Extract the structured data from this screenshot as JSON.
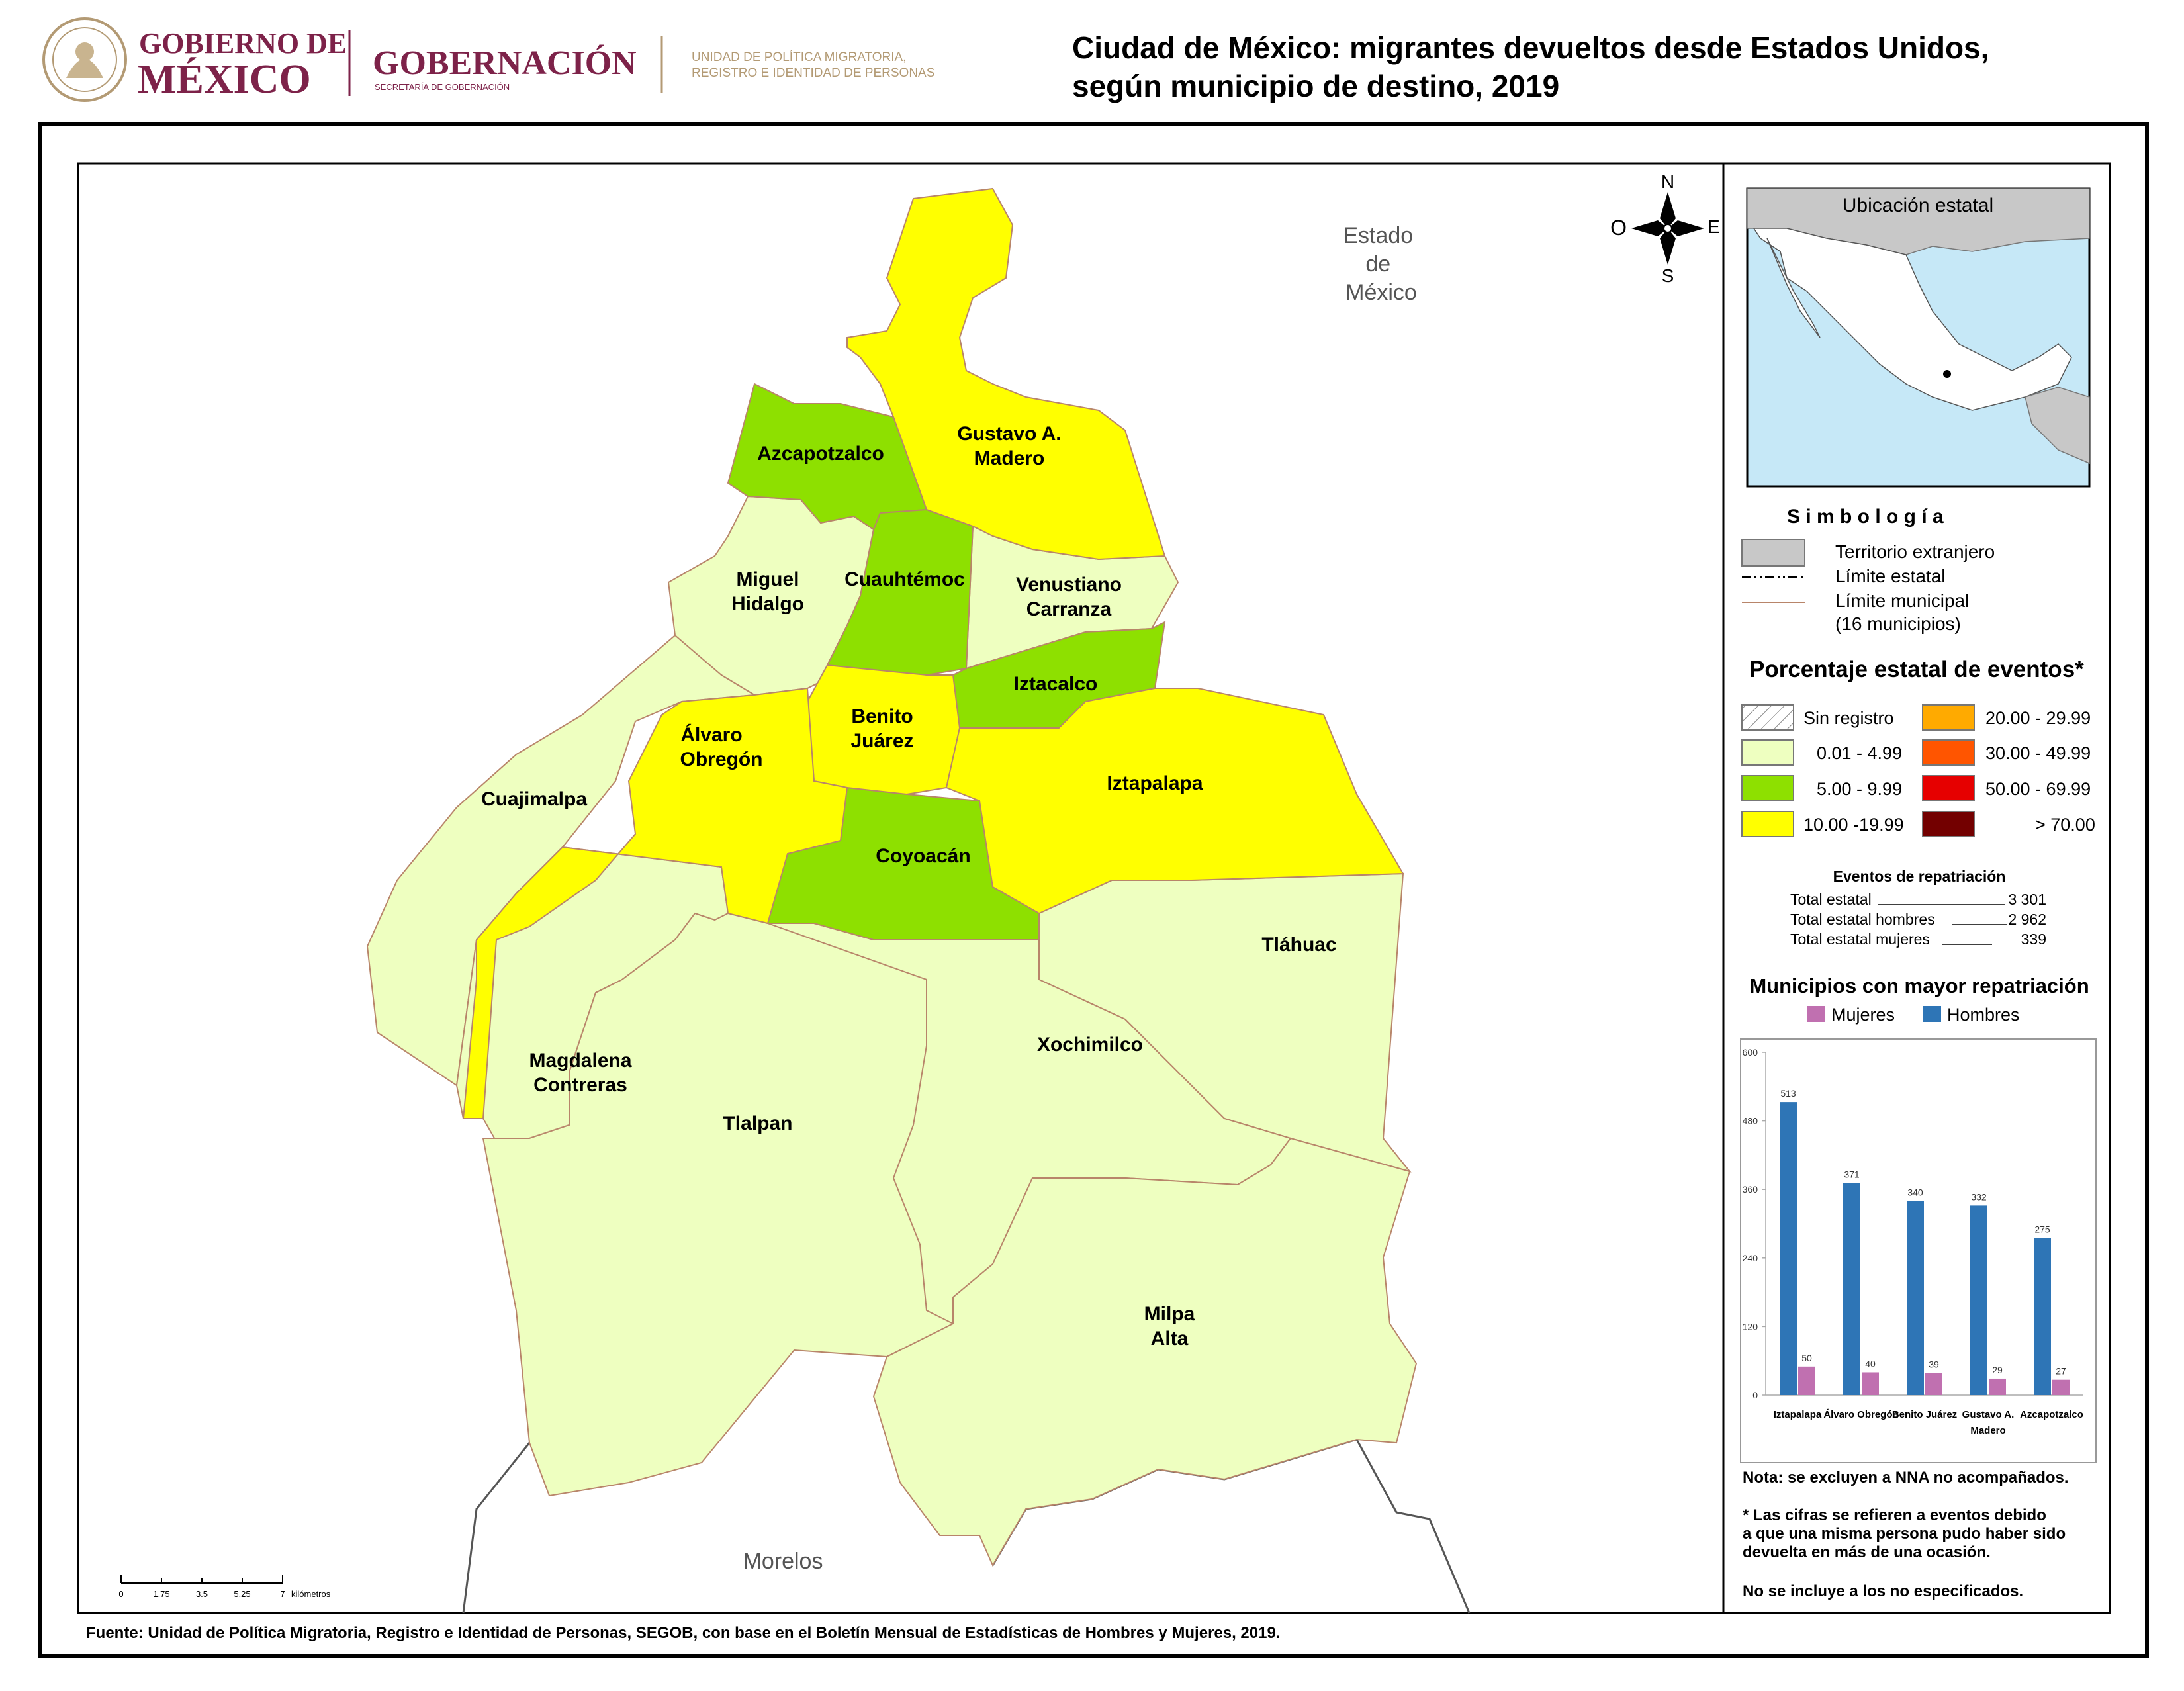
{
  "header": {
    "logo1_line1": "GOBIERNO DE",
    "logo1_line2": "MÉXICO",
    "logo2_title": "GOBERNACIÓN",
    "logo2_sub": "SECRETARÍA DE GOBERNACIÓN",
    "logo3_line1": "UNIDAD DE POLÍTICA MIGRATORIA,",
    "logo3_line2": "REGISTRO E IDENTIDAD DE PERSONAS",
    "title_line1": "Ciudad de México: migrantes devueltos desde Estados Unidos,",
    "title_line2": "según municipio de destino, 2019"
  },
  "map": {
    "neighbor_north": [
      "Estado",
      "de",
      "México"
    ],
    "neighbor_south": "Morelos",
    "compass": {
      "n": "N",
      "s": "S",
      "e": "E",
      "w": "O"
    },
    "scale": {
      "ticks": [
        "0",
        "1.75",
        "3.5",
        "5.25",
        "7"
      ],
      "unit": "kilómetros"
    },
    "municipalities": [
      {
        "id": "gam",
        "label": [
          "Gustavo A.",
          "Madero"
        ],
        "class": "10.00 -19.99"
      },
      {
        "id": "azc",
        "label": [
          "Azcapotzalco"
        ],
        "class": "5.00 - 9.99"
      },
      {
        "id": "mh",
        "label": [
          "Miguel",
          "Hidalgo"
        ],
        "class": "0.01 - 4.99"
      },
      {
        "id": "cuh",
        "label": [
          "Cuauhtémoc"
        ],
        "class": "5.00 - 9.99"
      },
      {
        "id": "vc",
        "label": [
          "Venustiano",
          "Carranza"
        ],
        "class": "0.01 - 4.99"
      },
      {
        "id": "izc",
        "label": [
          "Iztacalco"
        ],
        "class": "5.00 - 9.99"
      },
      {
        "id": "bj",
        "label": [
          "Benito",
          "Juárez"
        ],
        "class": "10.00 -19.99"
      },
      {
        "id": "ao",
        "label": [
          "Álvaro",
          "Obregón"
        ],
        "class": "10.00 -19.99"
      },
      {
        "id": "cuj",
        "label": [
          "Cuajimalpa"
        ],
        "class": "0.01 - 4.99"
      },
      {
        "id": "izp",
        "label": [
          "Iztapalapa"
        ],
        "class": "10.00 -19.99"
      },
      {
        "id": "coy",
        "label": [
          "Coyoacán"
        ],
        "class": "5.00 - 9.99"
      },
      {
        "id": "tla",
        "label": [
          "Tláhuac"
        ],
        "class": "0.01 - 4.99"
      },
      {
        "id": "mc",
        "label": [
          "Magdalena",
          "Contreras"
        ],
        "class": "0.01 - 4.99"
      },
      {
        "id": "xo",
        "label": [
          "Xochimilco"
        ],
        "class": "0.01 - 4.99"
      },
      {
        "id": "tlp",
        "label": [
          "Tlalpan"
        ],
        "class": "0.01 - 4.99"
      },
      {
        "id": "ma",
        "label": [
          "Milpa",
          "Alta"
        ],
        "class": "0.01 - 4.99"
      }
    ]
  },
  "inset": {
    "title": "Ubicación estatal"
  },
  "legend": {
    "title": "S i m b o l o g í a",
    "items": [
      "Territorio extranjero",
      "Límite estatal",
      "Límite municipal",
      "(16 municipios)"
    ],
    "pct_title": "Porcentaje estatal de eventos*",
    "classes": [
      {
        "label": "Sin registro",
        "color": "hatch"
      },
      {
        "label": "0.01  - 4.99",
        "color": "#eeffc0"
      },
      {
        "label": "5.00  - 9.99",
        "color": "#8ee000"
      },
      {
        "label": "10.00 -19.99",
        "color": "#ffff00"
      },
      {
        "label": "20.00 - 29.99",
        "color": "#ffaa00"
      },
      {
        "label": "30.00 - 49.99",
        "color": "#ff5500"
      },
      {
        "label": "50.00 - 69.99",
        "color": "#e60000"
      },
      {
        "label": "> 70.00",
        "color": "#730000"
      }
    ]
  },
  "events": {
    "title": "Eventos de repatriación",
    "rows": [
      {
        "label": "Total estatal",
        "value": "3 301"
      },
      {
        "label": "Total estatal hombres",
        "value": "2 962"
      },
      {
        "label": "Total estatal mujeres",
        "value": "339"
      }
    ]
  },
  "chart_data": {
    "type": "bar",
    "title": "Municipios con mayor repatriación",
    "categories": [
      "Iztapalapa",
      "Álvaro Obregón",
      "Benito Juárez",
      "Gustavo A. Madero",
      "Azcapotzalco"
    ],
    "category_lines": [
      [
        "Iztapalapa"
      ],
      [
        "Álvaro Obregón"
      ],
      [
        "Benito Juárez"
      ],
      [
        "Gustavo A.",
        "Madero"
      ],
      [
        "Azcapotzalco"
      ]
    ],
    "series": [
      {
        "name": "Hombres",
        "color": "#2e75b6",
        "values": [
          513,
          371,
          340,
          332,
          275
        ]
      },
      {
        "name": "Mujeres",
        "color": "#c070b0",
        "values": [
          50,
          40,
          39,
          29,
          27
        ]
      }
    ],
    "ylim": [
      0,
      600
    ],
    "yticks": [
      0,
      120,
      240,
      360,
      480,
      600
    ],
    "legend_order": [
      "Mujeres",
      "Hombres"
    ],
    "legend_position": "top",
    "grid": false
  },
  "notes": [
    "Nota: se excluyen a NNA no acompañados.",
    "* Las cifras se refieren a eventos debido",
    "a que una misma persona pudo haber sido",
    "devuelta en más de una ocasión.",
    "No se incluye a los no especificados."
  ],
  "source": "Fuente: Unidad de Política Migratoria, Registro e Identidad de Personas, SEGOB, con base en el Boletín Mensual de Estadísticas de Hombres y Mujeres, 2019."
}
